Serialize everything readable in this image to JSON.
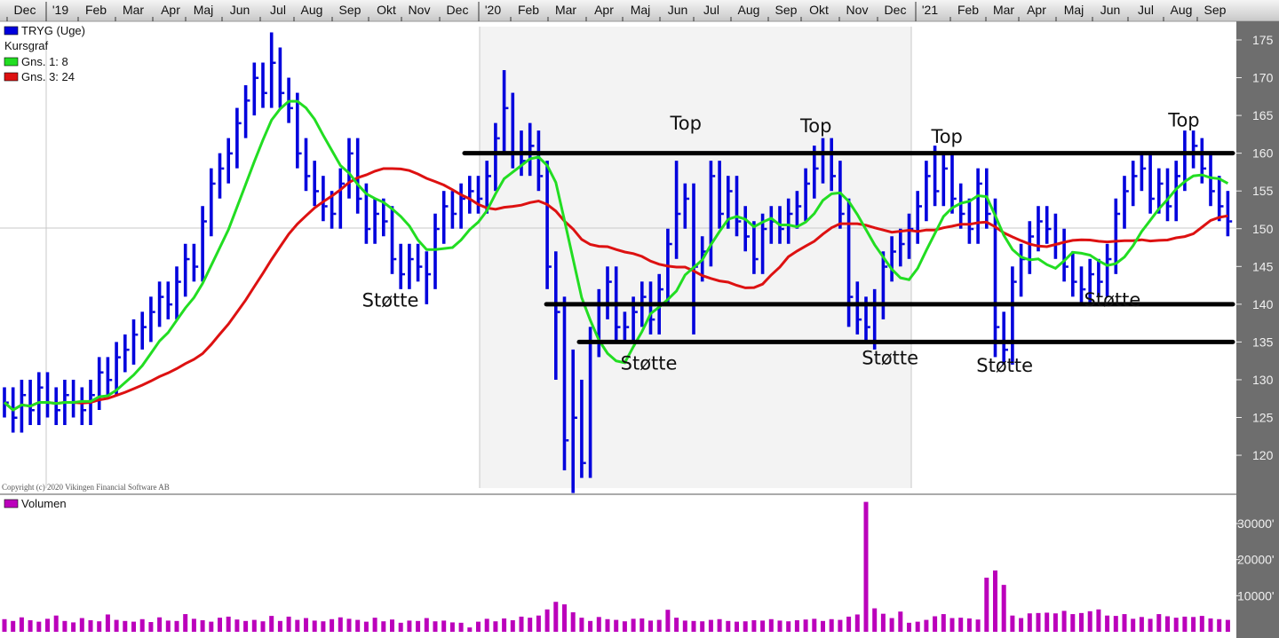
{
  "legend": {
    "symbol": "TRYG (Uge)",
    "subtitle": "Kursgraf",
    "ma1": "Gns. 1: 8",
    "ma3": "Gns. 3: 24",
    "volume": "Volumen"
  },
  "copyright": "Copyright (c) 2020 Vikingen Financial Software AB",
  "colors": {
    "bars": "#0000dd",
    "ma1": "#22dd22",
    "ma3": "#dd1111",
    "volume": "#bb00bb",
    "axis_panel": "#6e6e6e"
  },
  "chart_data": {
    "type": "ohlc",
    "title": "TRYG (Uge)",
    "x_axis_labels": [
      "Dec",
      "'19",
      "Feb",
      "Mar",
      "Apr",
      "Maj",
      "Jun",
      "Jul",
      "Aug",
      "Sep",
      "Okt",
      "Nov",
      "Dec",
      "'20",
      "Feb",
      "Mar",
      "Apr",
      "Maj",
      "Jun",
      "Jul",
      "Aug",
      "Sep",
      "Okt",
      "Nov",
      "Dec",
      "'21",
      "Feb",
      "Mar",
      "Apr",
      "Maj",
      "Jun",
      "Jul",
      "Aug",
      "Sep"
    ],
    "y_ticks": [
      175,
      170,
      165,
      160,
      155,
      150,
      145,
      140,
      135,
      130,
      125,
      120
    ],
    "ylim": [
      115,
      177
    ],
    "volume_ticks": [
      {
        "value": 30000,
        "label": "30000'"
      },
      {
        "value": 20000,
        "label": "20000'"
      },
      {
        "value": 10000,
        "label": "10000'"
      }
    ],
    "moving_averages": [
      8,
      24
    ],
    "close": [
      127,
      125,
      128,
      126,
      129,
      127,
      126,
      128,
      127,
      126,
      128,
      131,
      130,
      133,
      134,
      136,
      137,
      139,
      141,
      140,
      143,
      146,
      145,
      151,
      156,
      158,
      160,
      164,
      167,
      170,
      168,
      172,
      168,
      166,
      160,
      157,
      155,
      153,
      152,
      156,
      160,
      154,
      150,
      152,
      151,
      146,
      144,
      146,
      145,
      144,
      150,
      153,
      152,
      154,
      155,
      154,
      157,
      162,
      166,
      160,
      159,
      161,
      157,
      145,
      139,
      122,
      125,
      119,
      135,
      140,
      143,
      137,
      137,
      139,
      141,
      138,
      142,
      148,
      152,
      154,
      145,
      147,
      157,
      152,
      155,
      151,
      149,
      146,
      150,
      151,
      150,
      152,
      153,
      156,
      158,
      160,
      157,
      152,
      141,
      138,
      137,
      140,
      145,
      147,
      148,
      150,
      153,
      157,
      155,
      158,
      154,
      152,
      150,
      156,
      152,
      137,
      134,
      143,
      146,
      149,
      151,
      150,
      148,
      145,
      143,
      142,
      144,
      143,
      146,
      152,
      155,
      157,
      158,
      154,
      156,
      153,
      157,
      160,
      161,
      158,
      155,
      153,
      151
    ],
    "high": [
      129,
      129,
      130,
      130,
      131,
      131,
      129,
      130,
      130,
      129,
      130,
      133,
      133,
      135,
      136,
      138,
      139,
      141,
      143,
      143,
      145,
      148,
      148,
      153,
      158,
      160,
      162,
      166,
      169,
      172,
      172,
      176,
      174,
      170,
      168,
      162,
      159,
      157,
      155,
      158,
      162,
      162,
      156,
      154,
      154,
      153,
      148,
      148,
      148,
      147,
      152,
      155,
      155,
      156,
      157,
      157,
      159,
      164,
      171,
      168,
      163,
      164,
      163,
      159,
      147,
      141,
      134,
      130,
      137,
      142,
      145,
      145,
      139,
      141,
      143,
      143,
      144,
      150,
      159,
      156,
      156,
      149,
      159,
      159,
      157,
      157,
      153,
      151,
      152,
      153,
      153,
      154,
      155,
      158,
      161,
      162,
      162,
      159,
      154,
      143,
      141,
      142,
      147,
      149,
      150,
      152,
      155,
      159,
      161,
      160,
      160,
      156,
      154,
      158,
      158,
      154,
      139,
      145,
      148,
      151,
      153,
      153,
      152,
      150,
      147,
      145,
      146,
      146,
      148,
      154,
      157,
      159,
      160,
      160,
      158,
      158,
      159,
      163,
      163,
      162,
      160,
      157,
      155
    ],
    "low": [
      125,
      123,
      123,
      124,
      124,
      125,
      124,
      124,
      125,
      124,
      124,
      126,
      128,
      128,
      131,
      132,
      134,
      135,
      137,
      138,
      138,
      141,
      143,
      143,
      149,
      154,
      156,
      158,
      162,
      165,
      166,
      166,
      166,
      164,
      158,
      155,
      153,
      151,
      150,
      150,
      154,
      152,
      148,
      148,
      149,
      144,
      142,
      142,
      143,
      140,
      142,
      148,
      150,
      150,
      152,
      152,
      152,
      155,
      160,
      158,
      157,
      157,
      155,
      142,
      130,
      118,
      115,
      117,
      117,
      133,
      138,
      135,
      135,
      135,
      137,
      136,
      136,
      140,
      146,
      150,
      136,
      143,
      145,
      150,
      150,
      149,
      147,
      144,
      144,
      148,
      148,
      148,
      150,
      151,
      154,
      156,
      155,
      150,
      137,
      136,
      135,
      134,
      138,
      143,
      145,
      146,
      148,
      151,
      153,
      153,
      152,
      150,
      148,
      148,
      150,
      133,
      132,
      132,
      141,
      144,
      147,
      148,
      146,
      143,
      141,
      140,
      140,
      141,
      141,
      144,
      150,
      153,
      155,
      152,
      152,
      151,
      151,
      155,
      158,
      156,
      153,
      151,
      149
    ],
    "volume": [
      3500,
      3000,
      4000,
      3200,
      2800,
      3600,
      4500,
      3000,
      2600,
      3800,
      3200,
      2900,
      4800,
      3300,
      3000,
      2800,
      3500,
      2700,
      4000,
      3100,
      3000,
      4900,
      3600,
      3200,
      2800,
      3900,
      4200,
      3400,
      3000,
      3300,
      2900,
      4400,
      3000,
      4200,
      3300,
      3800,
      3100,
      2900,
      3500,
      4000,
      3600,
      3300,
      2800,
      3900,
      2900,
      3400,
      2500,
      3100,
      3000,
      3800,
      2900,
      3100,
      2600,
      2500,
      1200,
      2800,
      3600,
      2900,
      3700,
      3200,
      4200,
      3900,
      4500,
      6200,
      8300,
      7600,
      5400,
      3900,
      3000,
      4100,
      3500,
      3300,
      2900,
      3600,
      3700,
      3100,
      3300,
      6100,
      3900,
      3100,
      3000,
      2900,
      3300,
      3500,
      3000,
      2800,
      2900,
      3200,
      3100,
      3500,
      3100,
      2900,
      3200,
      3400,
      3600,
      3000,
      3500,
      3300,
      4200,
      4800,
      36000,
      6500,
      5000,
      3800,
      5600,
      2500,
      2800,
      3300,
      4300,
      4900,
      3800,
      3900,
      3700,
      3400,
      15000,
      17000,
      13000,
      4500,
      3800,
      5100,
      5200,
      5300,
      5100,
      5800,
      4900,
      5200,
      5700,
      6200,
      4500,
      4400,
      4900,
      3600,
      4100,
      3600,
      4900,
      4300,
      3900,
      4200,
      4100,
      4400,
      3700,
      3500,
      3300
    ],
    "horizontal_levels": [
      {
        "price": 160,
        "from_week": 53.4
      },
      {
        "price": 140,
        "from_week": 62.9
      },
      {
        "price": 135,
        "from_week": 66.7
      }
    ],
    "annotations": [
      {
        "text": "Støtte",
        "week": 44.8,
        "price": 140.6
      },
      {
        "text": "Top",
        "week": 79.1,
        "price": 164.1
      },
      {
        "text": "Top",
        "week": 94.2,
        "price": 163.7
      },
      {
        "text": "Top",
        "week": 109.4,
        "price": 162.3
      },
      {
        "text": "Top",
        "week": 136.9,
        "price": 164.5
      },
      {
        "text": "Støtte",
        "week": 74.8,
        "price": 132.3
      },
      {
        "text": "Støtte",
        "week": 102.8,
        "price": 133.0
      },
      {
        "text": "Støtte",
        "week": 116.1,
        "price": 132.0
      },
      {
        "text": "Støtte",
        "week": 128.6,
        "price": 140.7
      }
    ]
  }
}
